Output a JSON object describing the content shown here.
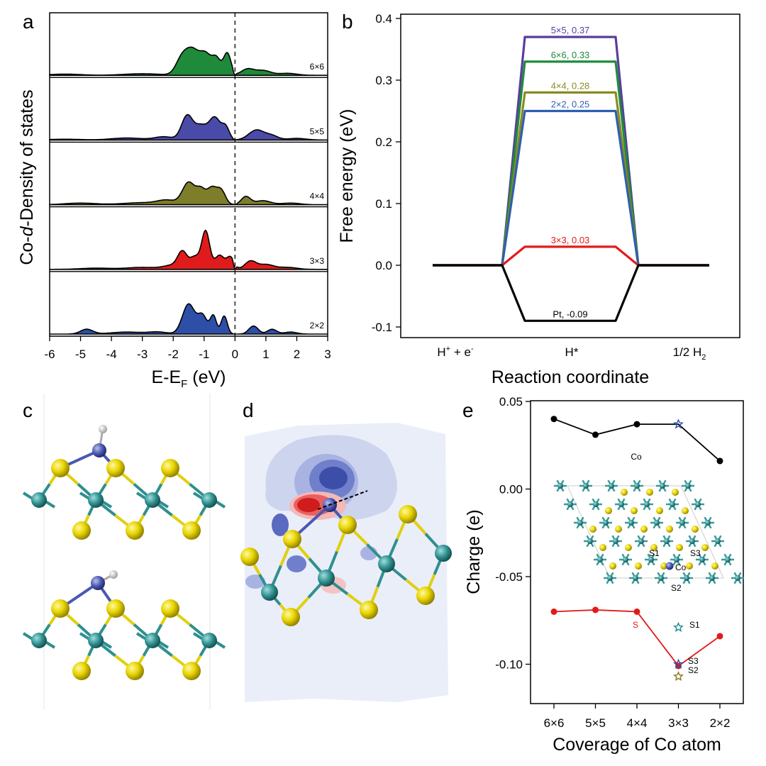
{
  "panels": {
    "a": {
      "label": "a",
      "ylabel_prefix": "Co-",
      "ylabel_italic": "d",
      "ylabel_suffix": "-Density of states",
      "xlabel": "E-E",
      "xlabel_sub": "F",
      "xlabel_unit": " (eV)",
      "xticks": [
        "-6",
        "-5",
        "-4",
        "-3",
        "-2",
        "-1",
        "0",
        "1",
        "2",
        "3"
      ],
      "traces": [
        {
          "label": "6×6",
          "color": "#1f8a3a",
          "peaks": [
            [
              -5.5,
              0.03,
              0.5
            ],
            [
              -3.0,
              0.04,
              0.6
            ],
            [
              -1.7,
              0.45,
              0.2
            ],
            [
              -1.35,
              0.55,
              0.2
            ],
            [
              -0.95,
              0.5,
              0.18
            ],
            [
              -0.6,
              0.4,
              0.14
            ],
            [
              -0.25,
              0.55,
              0.12
            ],
            [
              0.4,
              0.15,
              0.2
            ],
            [
              0.9,
              0.12,
              0.25
            ],
            [
              1.7,
              0.05,
              0.3
            ]
          ]
        },
        {
          "label": "5×5",
          "color": "#4a4aa8",
          "peaks": [
            [
              -5.5,
              0.02,
              0.5
            ],
            [
              -3.5,
              0.05,
              0.5
            ],
            [
              -2.3,
              0.08,
              0.3
            ],
            [
              -1.55,
              0.6,
              0.18
            ],
            [
              -1.1,
              0.35,
              0.2
            ],
            [
              -0.65,
              0.55,
              0.18
            ],
            [
              -0.3,
              0.3,
              0.12
            ],
            [
              0.7,
              0.25,
              0.25
            ],
            [
              1.2,
              0.1,
              0.2
            ],
            [
              2.0,
              0.04,
              0.3
            ]
          ]
        },
        {
          "label": "4×4",
          "color": "#7d7d2a",
          "peaks": [
            [
              -5.0,
              0.04,
              0.5
            ],
            [
              -3.0,
              0.05,
              0.6
            ],
            [
              -2.2,
              0.1,
              0.3
            ],
            [
              -1.5,
              0.55,
              0.2
            ],
            [
              -1.1,
              0.35,
              0.15
            ],
            [
              -0.75,
              0.4,
              0.15
            ],
            [
              -0.45,
              0.35,
              0.14
            ],
            [
              0.35,
              0.2,
              0.15
            ],
            [
              0.9,
              0.1,
              0.25
            ],
            [
              1.8,
              0.04,
              0.3
            ]
          ]
        },
        {
          "label": "3×3",
          "color": "#e01b1b",
          "peaks": [
            [
              -4.5,
              0.03,
              0.5
            ],
            [
              -3.0,
              0.05,
              0.5
            ],
            [
              -2.0,
              0.1,
              0.3
            ],
            [
              -1.7,
              0.4,
              0.15
            ],
            [
              -1.3,
              0.3,
              0.15
            ],
            [
              -0.95,
              0.95,
              0.13
            ],
            [
              -0.5,
              0.35,
              0.15
            ],
            [
              -0.15,
              0.3,
              0.12
            ],
            [
              0.5,
              0.2,
              0.18
            ],
            [
              1.0,
              0.12,
              0.25
            ],
            [
              1.7,
              0.05,
              0.3
            ]
          ]
        },
        {
          "label": "2×2",
          "color": "#2e4fa8",
          "peaks": [
            [
              -4.8,
              0.12,
              0.2
            ],
            [
              -3.5,
              0.05,
              0.5
            ],
            [
              -2.5,
              0.05,
              0.3
            ],
            [
              -1.5,
              0.75,
              0.2
            ],
            [
              -1.05,
              0.45,
              0.15
            ],
            [
              -0.7,
              0.45,
              0.1
            ],
            [
              -0.35,
              0.45,
              0.1
            ],
            [
              0.6,
              0.2,
              0.15
            ],
            [
              1.2,
              0.12,
              0.15
            ],
            [
              1.8,
              0.05,
              0.2
            ]
          ]
        }
      ]
    },
    "b": {
      "label": "b",
      "ylabel": "Free energy (eV)",
      "xlabel": "Reaction coordinate",
      "yticks": [
        "0.4",
        "0.3",
        "0.2",
        "0.1",
        "0.0",
        "-0.1"
      ],
      "xcat_hplus": "H",
      "xcat_hplus_sup1": "+",
      "xcat_hplus_mid": " + e",
      "xcat_hplus_sup2": "-",
      "xcat_hstar": "H*",
      "xcat_h2": "1/2 H",
      "xcat_h2_sub": "2"
    },
    "c": {
      "label": "c"
    },
    "d": {
      "label": "d"
    },
    "e": {
      "label": "e",
      "ylabel": "Charge (e)",
      "xlabel": "Coverage of Co atom",
      "yticks": [
        "0.05",
        "0.00",
        "-0.05",
        "-0.10"
      ],
      "annot_co": "Co",
      "annot_s": "S",
      "inset_s1": "S1",
      "inset_s2": "S2",
      "inset_s3": "S3",
      "inset_co": "Co"
    }
  },
  "chart_data": [
    {
      "type": "line",
      "title": "",
      "xlabel": "Reaction coordinate",
      "ylabel": "Free energy (eV)",
      "categories": [
        "H+ + e-",
        "H*",
        "1/2 H2"
      ],
      "ylim": [
        -0.12,
        0.4
      ],
      "series": [
        {
          "name": "5×5",
          "label": "5×5, 0.37",
          "color": "#5a3d9e",
          "values": [
            0,
            0.37,
            0
          ]
        },
        {
          "name": "6×6",
          "label": "6×6, 0.33",
          "color": "#1f8a3a",
          "values": [
            0,
            0.33,
            0
          ]
        },
        {
          "name": "4×4",
          "label": "4×4, 0.28",
          "color": "#8a8a22",
          "values": [
            0,
            0.28,
            0
          ]
        },
        {
          "name": "2×2",
          "label": "2×2, 0.25",
          "color": "#2d5fb0",
          "values": [
            0,
            0.25,
            0
          ]
        },
        {
          "name": "3×3",
          "label": "3×3, 0.03",
          "color": "#e01b1b",
          "values": [
            0,
            0.03,
            0
          ]
        },
        {
          "name": "Pt",
          "label": "Pt, -0.09",
          "color": "#000000",
          "values": [
            0,
            -0.09,
            0
          ]
        }
      ]
    },
    {
      "type": "line",
      "title": "",
      "xlabel": "Coverage of Co atom",
      "ylabel": "Charge (e)",
      "categories": [
        "6×6",
        "5×5",
        "4×4",
        "3×3",
        "2×2"
      ],
      "ylim": [
        -0.125,
        0.05
      ],
      "series": [
        {
          "name": "Co",
          "color": "#000000",
          "values": [
            0.04,
            0.031,
            0.037,
            0.037,
            0.016
          ]
        },
        {
          "name": "S",
          "color": "#e01b1b",
          "values": [
            -0.07,
            -0.069,
            -0.07,
            -0.101,
            -0.084
          ]
        }
      ],
      "extra_points": [
        {
          "name": "S1",
          "category": "3×3",
          "value": -0.079,
          "color": "#1b8a8a"
        },
        {
          "name": "S3",
          "category": "3×3",
          "value": -0.1,
          "color": "#2d4fa8"
        },
        {
          "name": "S2",
          "category": "3×3",
          "value": -0.107,
          "color": "#8a7a22"
        }
      ]
    }
  ]
}
